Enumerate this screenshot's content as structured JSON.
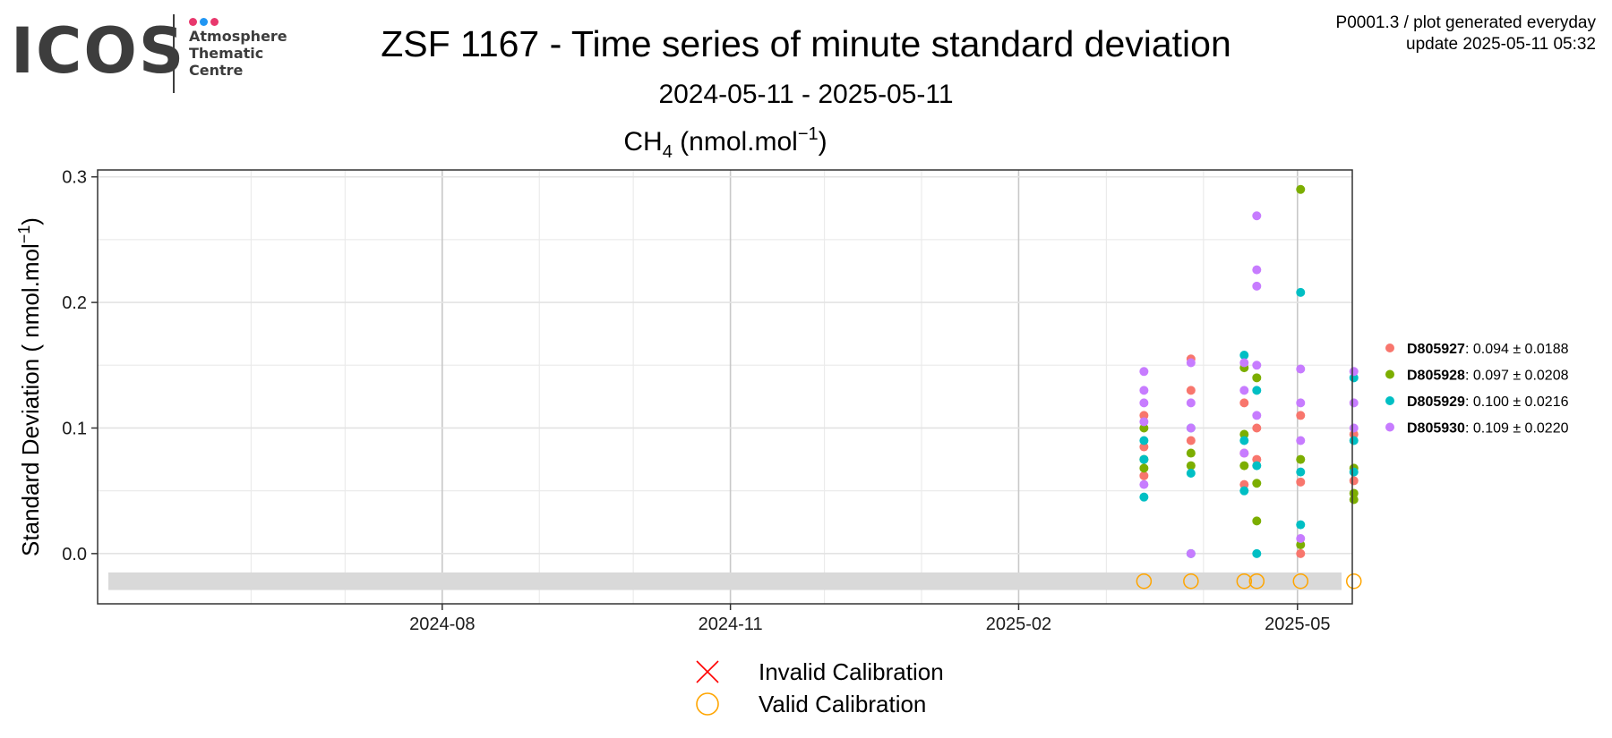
{
  "logo": {
    "text": "ICOS",
    "lines": [
      "Atmosphere",
      "Thematic",
      "Centre"
    ],
    "dot_colors": [
      "#e8386d",
      "#2196f3",
      "#e8386d"
    ]
  },
  "header": {
    "title": "ZSF 1167 - Time series of minute standard deviation",
    "subtitle": "2024-05-11 - 2025-05-11",
    "info_line1": "P0001.3 / plot generated everyday",
    "info_line2": "update  2025-05-11 05:32"
  },
  "chart_data": {
    "type": "scatter",
    "title": "CH4 (nmol.mol-1)",
    "ylabel": "Standard Deviation ( nmol.mol-1)",
    "x_range": [
      "2024-05-11",
      "2025-05-11"
    ],
    "ylim": [
      -0.03,
      0.3
    ],
    "x_ticks": [
      "2024-08",
      "2024-11",
      "2025-02",
      "2025-05"
    ],
    "y_ticks": [
      "0.0",
      "0.1",
      "0.2",
      "0.3"
    ],
    "grid": true,
    "legend_position": "right",
    "calibration_dates": [
      "2025-03-13",
      "2025-03-28",
      "2025-04-14",
      "2025-04-18",
      "2025-05-02",
      "2025-05-19"
    ],
    "series": [
      {
        "name": "D805927",
        "stat": ": 0.094 ± 0.0188",
        "color": "#F8766D",
        "points": [
          [
            "2025-03-13",
            0.062
          ],
          [
            "2025-03-13",
            0.085
          ],
          [
            "2025-03-13",
            0.11
          ],
          [
            "2025-03-28",
            0.155
          ],
          [
            "2025-03-28",
            0.13
          ],
          [
            "2025-03-28",
            0.09
          ],
          [
            "2025-04-14",
            0.055
          ],
          [
            "2025-04-14",
            0.12
          ],
          [
            "2025-04-14",
            0.08
          ],
          [
            "2025-04-18",
            0.1
          ],
          [
            "2025-04-18",
            0.075
          ],
          [
            "2025-05-02",
            0.057
          ],
          [
            "2025-05-02",
            0.0
          ],
          [
            "2025-05-02",
            0.11
          ],
          [
            "2025-05-19",
            0.058
          ],
          [
            "2025-05-19",
            0.095
          ]
        ]
      },
      {
        "name": "D805928",
        "stat": ": 0.097 ± 0.0208",
        "color": "#7CAE00",
        "points": [
          [
            "2025-03-13",
            0.068
          ],
          [
            "2025-03-13",
            0.075
          ],
          [
            "2025-03-13",
            0.1
          ],
          [
            "2025-03-28",
            0.07
          ],
          [
            "2025-03-28",
            0.08
          ],
          [
            "2025-04-14",
            0.07
          ],
          [
            "2025-04-14",
            0.148
          ],
          [
            "2025-04-14",
            0.095
          ],
          [
            "2025-04-18",
            0.026
          ],
          [
            "2025-04-18",
            0.056
          ],
          [
            "2025-04-18",
            0.14
          ],
          [
            "2025-05-02",
            0.29
          ],
          [
            "2025-05-02",
            0.007
          ],
          [
            "2025-05-02",
            0.075
          ],
          [
            "2025-05-19",
            0.043
          ],
          [
            "2025-05-19",
            0.048
          ],
          [
            "2025-05-19",
            0.068
          ]
        ]
      },
      {
        "name": "D805929",
        "stat": ": 0.100 ± 0.0216",
        "color": "#00BFC4",
        "points": [
          [
            "2025-03-13",
            0.045
          ],
          [
            "2025-03-13",
            0.09
          ],
          [
            "2025-03-13",
            0.075
          ],
          [
            "2025-03-28",
            0.064
          ],
          [
            "2025-03-28",
            0.1
          ],
          [
            "2025-03-28",
            0.0
          ],
          [
            "2025-04-14",
            0.158
          ],
          [
            "2025-04-14",
            0.05
          ],
          [
            "2025-04-14",
            0.09
          ],
          [
            "2025-04-18",
            0.0
          ],
          [
            "2025-04-18",
            0.07
          ],
          [
            "2025-04-18",
            0.13
          ],
          [
            "2025-05-02",
            0.208
          ],
          [
            "2025-05-02",
            0.023
          ],
          [
            "2025-05-02",
            0.065
          ],
          [
            "2025-05-19",
            0.14
          ],
          [
            "2025-05-19",
            0.065
          ],
          [
            "2025-05-19",
            0.09
          ]
        ]
      },
      {
        "name": "D805930",
        "stat": ": 0.109 ± 0.0220",
        "color": "#C77CFF",
        "points": [
          [
            "2025-03-13",
            0.055
          ],
          [
            "2025-03-13",
            0.145
          ],
          [
            "2025-03-13",
            0.13
          ],
          [
            "2025-03-13",
            0.12
          ],
          [
            "2025-03-13",
            0.105
          ],
          [
            "2025-03-28",
            0.152
          ],
          [
            "2025-03-28",
            0.0
          ],
          [
            "2025-03-28",
            0.12
          ],
          [
            "2025-03-28",
            0.1
          ],
          [
            "2025-04-14",
            0.152
          ],
          [
            "2025-04-14",
            0.08
          ],
          [
            "2025-04-14",
            0.13
          ],
          [
            "2025-04-18",
            0.269
          ],
          [
            "2025-04-18",
            0.226
          ],
          [
            "2025-04-18",
            0.213
          ],
          [
            "2025-04-18",
            0.15
          ],
          [
            "2025-04-18",
            0.11
          ],
          [
            "2025-05-02",
            0.012
          ],
          [
            "2025-05-02",
            0.147
          ],
          [
            "2025-05-02",
            0.12
          ],
          [
            "2025-05-02",
            0.09
          ],
          [
            "2025-05-19",
            0.145
          ],
          [
            "2025-05-19",
            0.12
          ],
          [
            "2025-05-19",
            0.1
          ]
        ]
      }
    ],
    "calibration_legend": [
      {
        "label": "Invalid Calibration",
        "marker": "cross",
        "color": "#ff0000"
      },
      {
        "label": "Valid Calibration",
        "marker": "circle",
        "color": "#ffa500"
      }
    ]
  }
}
